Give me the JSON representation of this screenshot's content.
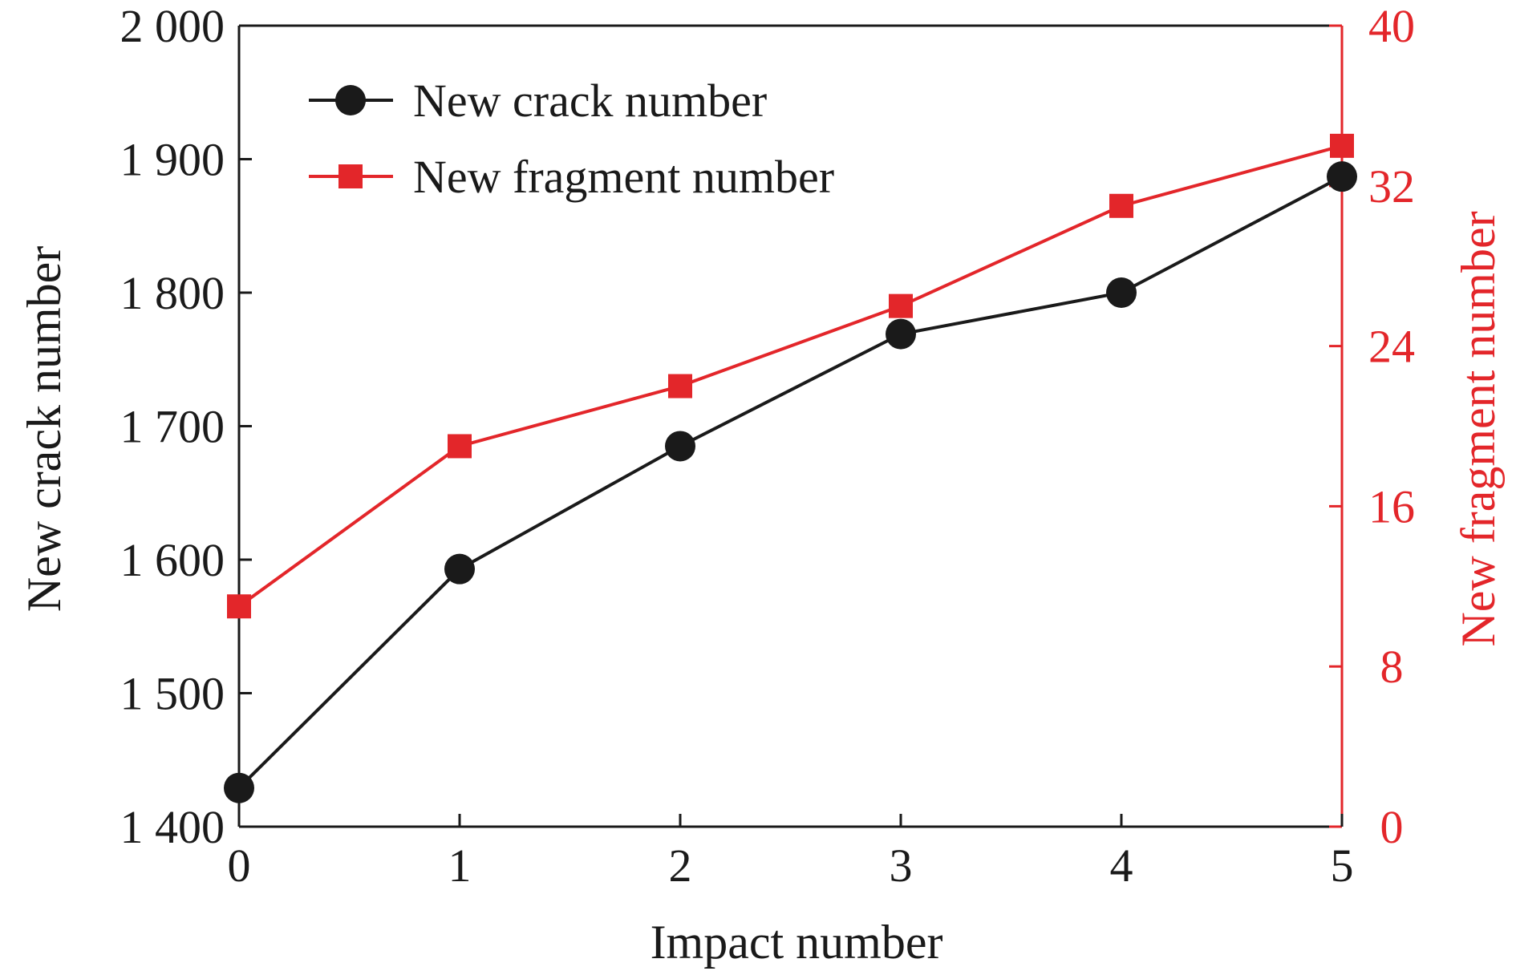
{
  "chart_data": {
    "type": "line",
    "title": "",
    "xlabel": "Impact number",
    "ylabel": "New crack number",
    "y2label": "New fragment number",
    "x": [
      0,
      1,
      2,
      3,
      4,
      5
    ],
    "x_ticks": [
      "0",
      "1",
      "2",
      "3",
      "4",
      "5"
    ],
    "xlim": [
      0,
      5
    ],
    "ylim": [
      1400,
      2000
    ],
    "y_ticks": [
      "1 400",
      "1 500",
      "1 600",
      "1 700",
      "1 800",
      "1 900",
      "2 000"
    ],
    "y2lim": [
      0,
      40
    ],
    "y2_ticks": [
      "0",
      "8",
      "16",
      "24",
      "32",
      "40"
    ],
    "grid": false,
    "legend_position": "top-left",
    "series": [
      {
        "name": "New crack number",
        "axis": "left",
        "marker": "circle",
        "color": "#1a1a1a",
        "values": [
          1429,
          1593,
          1685,
          1769,
          1800,
          1887
        ]
      },
      {
        "name": "New fragment number",
        "axis": "right",
        "marker": "square",
        "color": "#e3262a",
        "values": [
          11,
          19,
          22,
          26,
          31,
          34
        ]
      }
    ]
  }
}
